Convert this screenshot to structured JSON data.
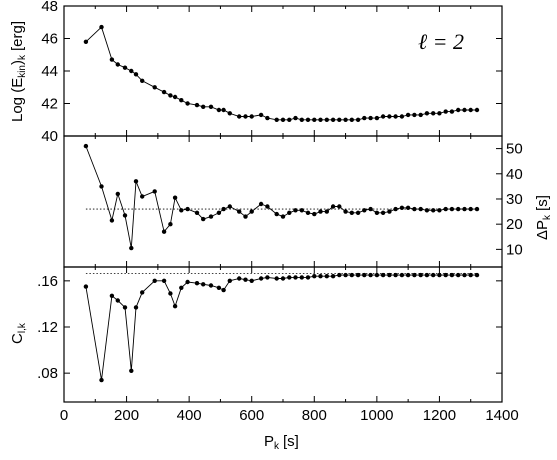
{
  "chart_data": [
    {
      "type": "line",
      "panel": "top",
      "ylabel": "Log (E",
      "ylabel_sub": "kin",
      "ylabel_tail": ")",
      "ylabel_sub2": "k",
      "ylabel_units": "[erg]",
      "annotation": "ℓ = 2",
      "xlim": [
        0,
        1400
      ],
      "ylim": [
        40,
        48
      ],
      "yticks": [
        "40",
        "42",
        "44",
        "46",
        "48"
      ],
      "grid": false,
      "series": [
        {
          "x": [
            70,
            120,
            153,
            172,
            195,
            215,
            230,
            250,
            290,
            320,
            340,
            355,
            375,
            395,
            425,
            445,
            470,
            495,
            510,
            530,
            560,
            580,
            600,
            630,
            650,
            680,
            700,
            720,
            740,
            760,
            780,
            800,
            820,
            840,
            860,
            880,
            900,
            920,
            940,
            960,
            980,
            1000,
            1020,
            1040,
            1060,
            1080,
            1100,
            1120,
            1140,
            1160,
            1180,
            1200,
            1220,
            1240,
            1260,
            1280,
            1300,
            1320
          ],
          "y": [
            45.8,
            46.7,
            44.7,
            44.4,
            44.2,
            44.0,
            43.8,
            43.4,
            43.0,
            42.7,
            42.5,
            42.4,
            42.2,
            42.0,
            41.9,
            41.8,
            41.8,
            41.6,
            41.6,
            41.4,
            41.2,
            41.2,
            41.2,
            41.3,
            41.1,
            41.0,
            41.0,
            41.0,
            41.1,
            41.0,
            41.0,
            41.0,
            41.0,
            41.0,
            41.0,
            41.0,
            41.0,
            41.0,
            41.0,
            41.1,
            41.1,
            41.1,
            41.2,
            41.2,
            41.2,
            41.2,
            41.3,
            41.3,
            41.3,
            41.4,
            41.4,
            41.4,
            41.5,
            41.5,
            41.6,
            41.6,
            41.6,
            41.6
          ]
        }
      ]
    },
    {
      "type": "line",
      "panel": "middle",
      "ylabel": "ΔP",
      "ylabel_sub": "k",
      "ylabel_units": "[s]",
      "yaxis_side": "right",
      "xlim": [
        0,
        1400
      ],
      "ylim": [
        3,
        55
      ],
      "yticks": [
        "10",
        "20",
        "30",
        "40",
        "50"
      ],
      "reference_line": 26,
      "series": [
        {
          "x": [
            70,
            120,
            153,
            172,
            195,
            215,
            230,
            250,
            290,
            320,
            340,
            355,
            375,
            395,
            425,
            445,
            470,
            495,
            510,
            530,
            560,
            580,
            600,
            630,
            650,
            680,
            700,
            720,
            740,
            760,
            780,
            800,
            820,
            840,
            860,
            880,
            900,
            920,
            940,
            960,
            980,
            1000,
            1020,
            1040,
            1060,
            1080,
            1100,
            1120,
            1140,
            1160,
            1180,
            1200,
            1220,
            1240,
            1260,
            1280,
            1300,
            1320
          ],
          "y": [
            51,
            35,
            21.5,
            32,
            23.5,
            10.5,
            37,
            31,
            33,
            17,
            20,
            30.5,
            25.5,
            26,
            24.5,
            22,
            23,
            24.5,
            26,
            27,
            25,
            23,
            25,
            28,
            27,
            24,
            23,
            24.5,
            25.5,
            25.5,
            24.5,
            24,
            25,
            25,
            27,
            27,
            25,
            24.5,
            24.5,
            25.5,
            26,
            24.5,
            24.5,
            25,
            26,
            26.5,
            26.5,
            26,
            26,
            25.5,
            25.5,
            25.5,
            26,
            26,
            26,
            26,
            26,
            26
          ]
        }
      ]
    },
    {
      "type": "line",
      "panel": "bottom",
      "ylabel": "C",
      "ylabel_sub": "l,k",
      "xlabel": "P",
      "xlabel_sub": "k",
      "xlabel_units": "[s]",
      "xlim": [
        0,
        1400
      ],
      "xticks": [
        "0",
        "200",
        "400",
        "600",
        "800",
        "1000",
        "1200",
        "1400"
      ],
      "ylim": [
        0.055,
        0.172
      ],
      "yticks": [
        ".08",
        ".12",
        ".16"
      ],
      "reference_line": 0.1665,
      "series": [
        {
          "x": [
            70,
            120,
            153,
            172,
            195,
            215,
            230,
            250,
            290,
            320,
            340,
            355,
            375,
            395,
            425,
            445,
            470,
            495,
            510,
            530,
            560,
            580,
            600,
            630,
            650,
            680,
            700,
            720,
            740,
            760,
            780,
            800,
            820,
            840,
            860,
            880,
            900,
            920,
            940,
            960,
            980,
            1000,
            1020,
            1040,
            1060,
            1080,
            1100,
            1120,
            1140,
            1160,
            1180,
            1200,
            1220,
            1240,
            1260,
            1280,
            1300,
            1320
          ],
          "y": [
            0.155,
            0.074,
            0.147,
            0.143,
            0.137,
            0.082,
            0.137,
            0.15,
            0.16,
            0.16,
            0.149,
            0.138,
            0.154,
            0.159,
            0.158,
            0.157,
            0.156,
            0.154,
            0.152,
            0.16,
            0.162,
            0.161,
            0.16,
            0.162,
            0.163,
            0.162,
            0.162,
            0.163,
            0.163,
            0.163,
            0.163,
            0.164,
            0.164,
            0.164,
            0.164,
            0.165,
            0.165,
            0.165,
            0.165,
            0.165,
            0.165,
            0.165,
            0.165,
            0.165,
            0.165,
            0.165,
            0.165,
            0.165,
            0.165,
            0.165,
            0.165,
            0.165,
            0.165,
            0.165,
            0.165,
            0.165,
            0.165,
            0.165
          ]
        }
      ]
    }
  ]
}
